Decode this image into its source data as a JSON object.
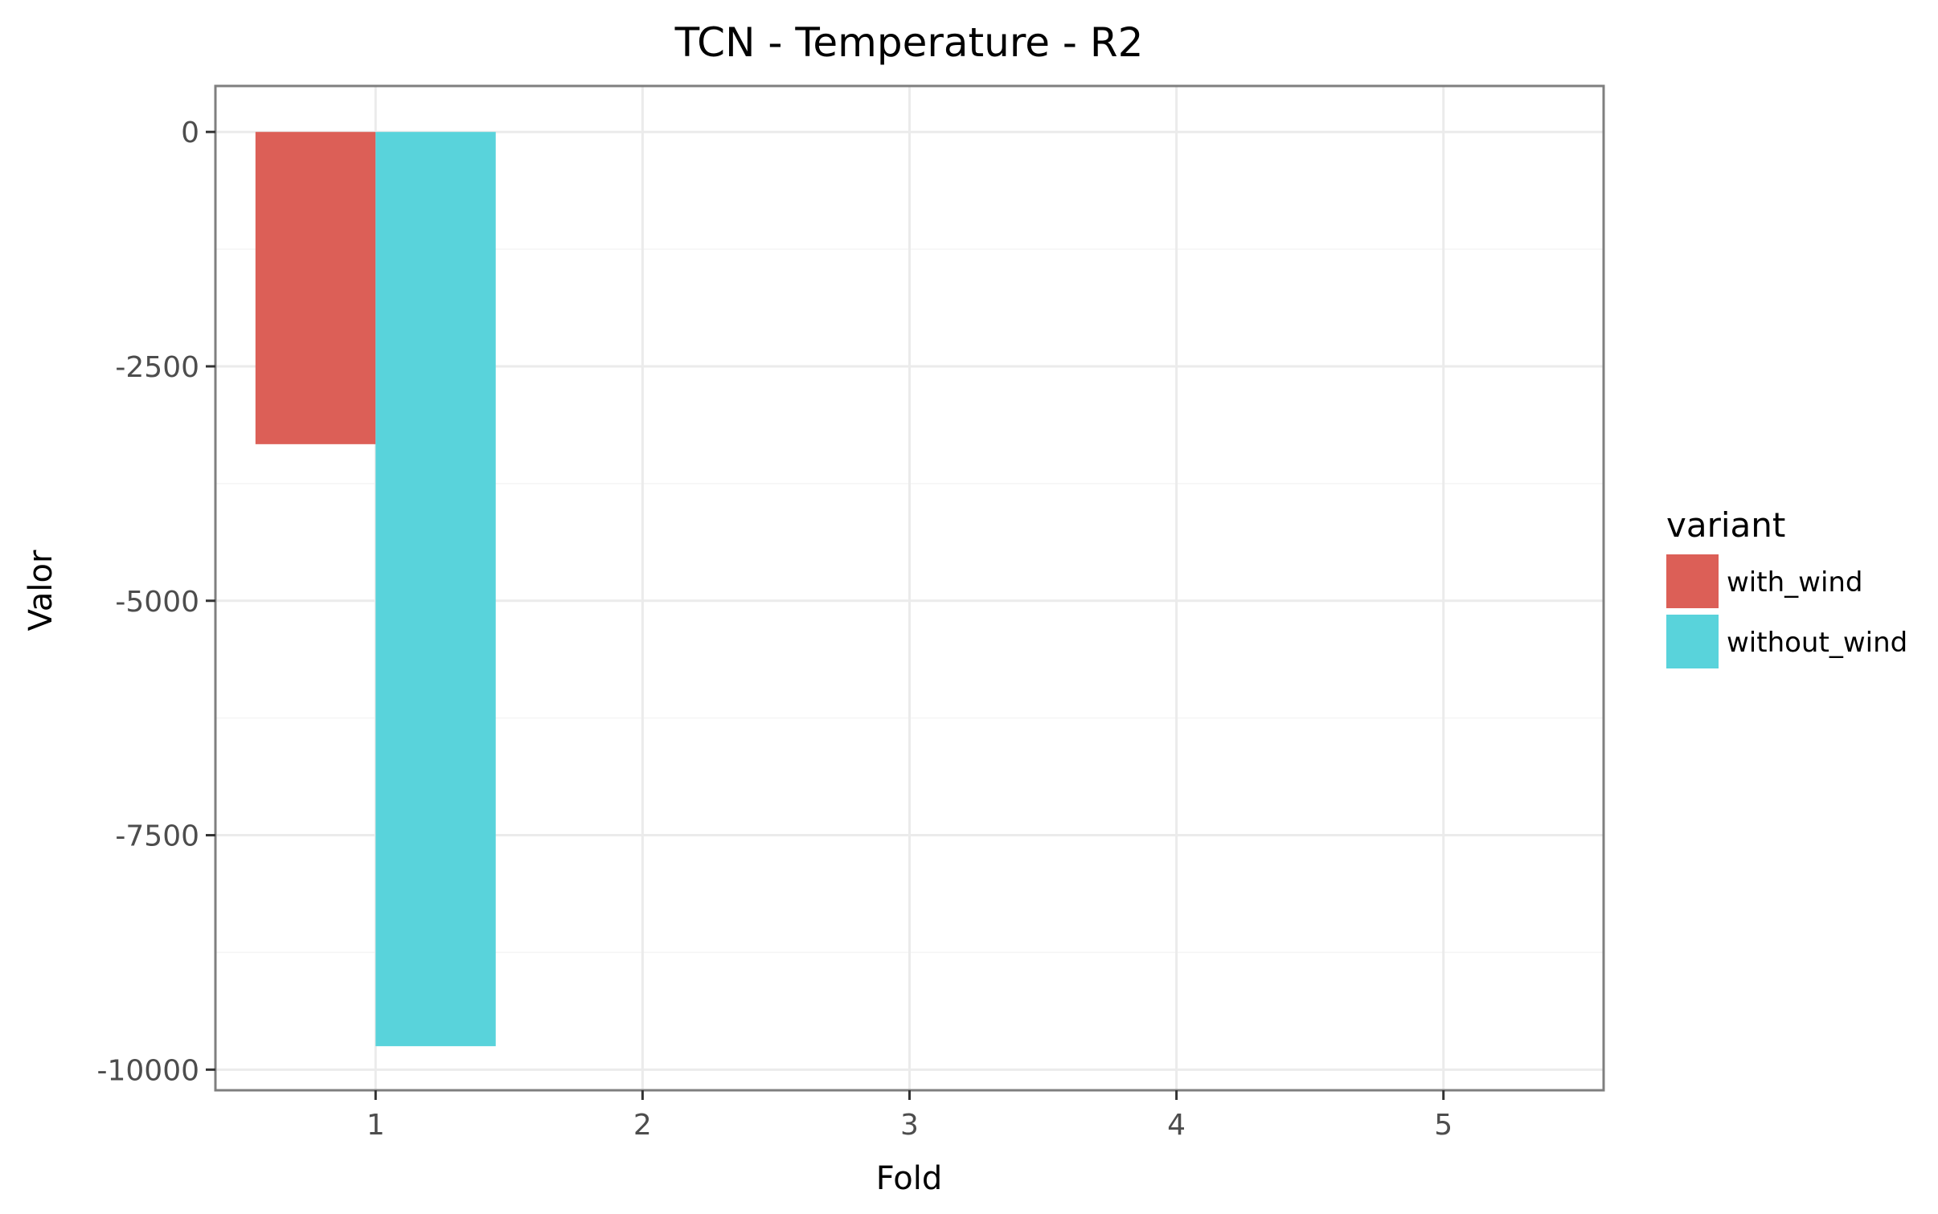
{
  "chart_data": {
    "type": "bar",
    "title": "TCN - Temperature - R2",
    "xlabel": "Fold",
    "ylabel": "Valor",
    "categories": [
      "1",
      "2",
      "3",
      "4",
      "5"
    ],
    "y_ticks": [
      0,
      -2500,
      -5000,
      -7500,
      -10000
    ],
    "y_tick_labels": [
      "0",
      "-2500",
      "-5000",
      "-7500",
      "-10000"
    ],
    "ylim": [
      -10220,
      490
    ],
    "xlim": [
      0.4,
      5.6
    ],
    "grid": true,
    "legend": {
      "title": "variant",
      "placement": "right"
    },
    "series": [
      {
        "name": "with_wind",
        "color": "#dc5f57",
        "values": [
          -3330,
          null,
          null,
          null,
          null
        ]
      },
      {
        "name": "without_wind",
        "color": "#59d3db",
        "values": [
          -9750,
          null,
          null,
          null,
          null
        ]
      }
    ]
  }
}
